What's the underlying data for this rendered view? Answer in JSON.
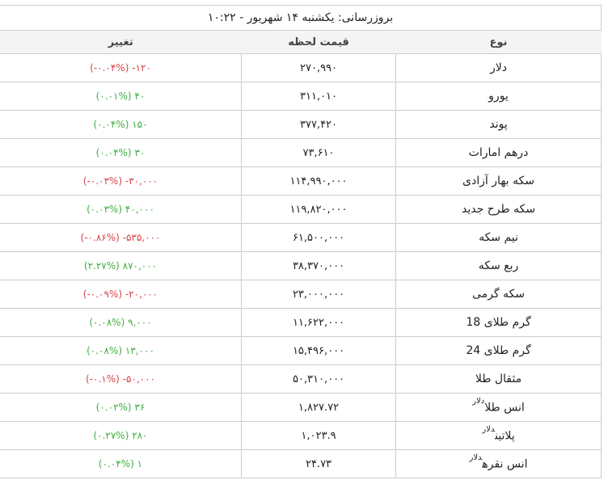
{
  "title": "بروزرسانی: یکشنبه ۱۴ شهریور - ۱۰:۲۲",
  "headers": {
    "name": "نوع",
    "price": "قیمت لحظه",
    "change": "تغییر"
  },
  "colors": {
    "negative": "#d9434a",
    "positive": "#3fae3f"
  },
  "rows": [
    {
      "name": "دلار",
      "unit": "",
      "price": "۲۷۰,۹۹۰",
      "change": "-۱۲۰",
      "percent": "-۰.۰۴%",
      "trend": "neg"
    },
    {
      "name": "یورو",
      "unit": "",
      "price": "۳۱۱,۰۱۰",
      "change": "۴۰",
      "percent": "۰.۰۱%",
      "trend": "pos"
    },
    {
      "name": "پوند",
      "unit": "",
      "price": "۳۷۷,۴۲۰",
      "change": "۱۵۰",
      "percent": "۰.۰۴%",
      "trend": "pos"
    },
    {
      "name": "درهم امارات",
      "unit": "",
      "price": "۷۳,۶۱۰",
      "change": "۳۰",
      "percent": "۰.۰۴%",
      "trend": "pos"
    },
    {
      "name": "سکه بهار آزادی",
      "unit": "",
      "price": "۱۱۴,۹۹۰,۰۰۰",
      "change": "-۳۰,۰۰۰",
      "percent": "-۰.۰۳%",
      "trend": "neg"
    },
    {
      "name": "سکه طرح جدید",
      "unit": "",
      "price": "۱۱۹,۸۲۰,۰۰۰",
      "change": "۴۰,۰۰۰",
      "percent": "۰.۰۳%",
      "trend": "pos"
    },
    {
      "name": "نیم سکه",
      "unit": "",
      "price": "۶۱,۵۰۰,۰۰۰",
      "change": "-۵۳۵,۰۰۰",
      "percent": "-۰.۸۶%",
      "trend": "neg"
    },
    {
      "name": "ربع سکه",
      "unit": "",
      "price": "۳۸,۳۷۰,۰۰۰",
      "change": "۸۷۰,۰۰۰",
      "percent": "۲.۲۷%",
      "trend": "pos"
    },
    {
      "name": "سکه گرمی",
      "unit": "",
      "price": "۲۳,۰۰۰,۰۰۰",
      "change": "-۲۰,۰۰۰",
      "percent": "-۰.۰۹%",
      "trend": "neg"
    },
    {
      "name": "گرم طلای 18",
      "unit": "",
      "price": "۱۱,۶۲۲,۰۰۰",
      "change": "۹,۰۰۰",
      "percent": "۰.۰۸%",
      "trend": "pos"
    },
    {
      "name": "گرم طلای 24",
      "unit": "",
      "price": "۱۵,۴۹۶,۰۰۰",
      "change": "۱۳,۰۰۰",
      "percent": "۰.۰۸%",
      "trend": "pos"
    },
    {
      "name": "مثقال طلا",
      "unit": "",
      "price": "۵۰,۳۱۰,۰۰۰",
      "change": "-۵۰,۰۰۰",
      "percent": "-۰.۱%",
      "trend": "neg"
    },
    {
      "name": "انس طلا",
      "unit": "دلار",
      "price": "۱,۸۲۷.۷۲",
      "change": "۳۶",
      "percent": "۰.۰۲%",
      "trend": "pos"
    },
    {
      "name": "پلاتین",
      "unit": "دلار",
      "price": "۱,۰۲۳.۹",
      "change": "۲۸۰",
      "percent": "۰.۲۷%",
      "trend": "pos"
    },
    {
      "name": "انس نقره",
      "unit": "دلار",
      "price": "۲۴.۷۳",
      "change": "۱",
      "percent": "۰.۰۴%",
      "trend": "pos"
    }
  ]
}
